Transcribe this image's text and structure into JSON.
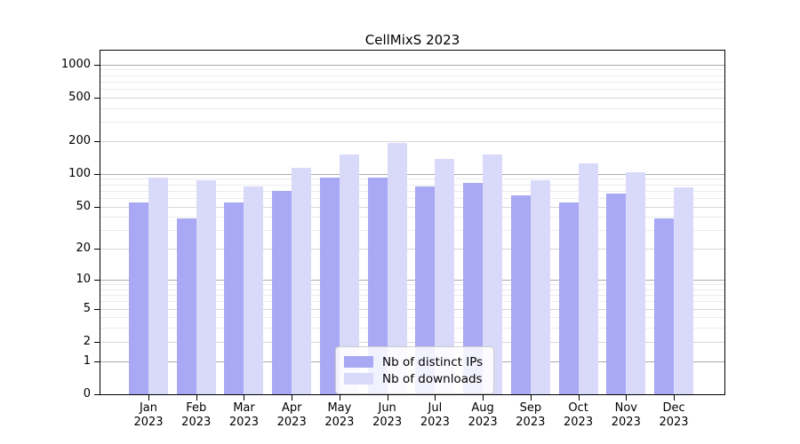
{
  "figure": {
    "title": "CellMixS 2023"
  },
  "legend": {
    "items": [
      {
        "label": "Nb of distinct IPs",
        "color": "#a8a8f4"
      },
      {
        "label": "Nb of downloads",
        "color": "#d9d9fa"
      }
    ]
  },
  "chart_data": {
    "type": "bar",
    "title": "CellMixS 2023",
    "scale": "log1p",
    "grid": true,
    "legend_position": "lower center",
    "categories": [
      "Jan 2023",
      "Feb 2023",
      "Mar 2023",
      "Apr 2023",
      "May 2023",
      "Jun 2023",
      "Jul 2023",
      "Aug 2023",
      "Sep 2023",
      "Oct 2023",
      "Nov 2023",
      "Dec 2023"
    ],
    "x_tick_labels": [
      {
        "month": "Jan",
        "year": "2023"
      },
      {
        "month": "Feb",
        "year": "2023"
      },
      {
        "month": "Mar",
        "year": "2023"
      },
      {
        "month": "Apr",
        "year": "2023"
      },
      {
        "month": "May",
        "year": "2023"
      },
      {
        "month": "Jun",
        "year": "2023"
      },
      {
        "month": "Jul",
        "year": "2023"
      },
      {
        "month": "Aug",
        "year": "2023"
      },
      {
        "month": "Sep",
        "year": "2023"
      },
      {
        "month": "Oct",
        "year": "2023"
      },
      {
        "month": "Nov",
        "year": "2023"
      },
      {
        "month": "Dec",
        "year": "2023"
      }
    ],
    "series": [
      {
        "name": "Nb of distinct IPs",
        "color": "#a8a8f4",
        "values": [
          55,
          39,
          55,
          70,
          92,
          92,
          76,
          83,
          64,
          55,
          66,
          39
        ]
      },
      {
        "name": "Nb of downloads",
        "color": "#d9d9fa",
        "values": [
          93,
          87,
          76,
          114,
          150,
          193,
          137,
          152,
          88,
          125,
          104,
          75
        ]
      }
    ],
    "y_ticks": [
      1000,
      500,
      200,
      100,
      50,
      20,
      10,
      5,
      2,
      1,
      0
    ],
    "y_minor_ticks": [
      3,
      4,
      6,
      7,
      8,
      9,
      30,
      40,
      60,
      70,
      80,
      90,
      300,
      400,
      600,
      700,
      800,
      900
    ],
    "ylim": [
      0,
      1340
    ],
    "grid_colors": {
      "major": "#ababab",
      "mid": "#d6d6d6",
      "minor": "#ebebeb"
    }
  }
}
